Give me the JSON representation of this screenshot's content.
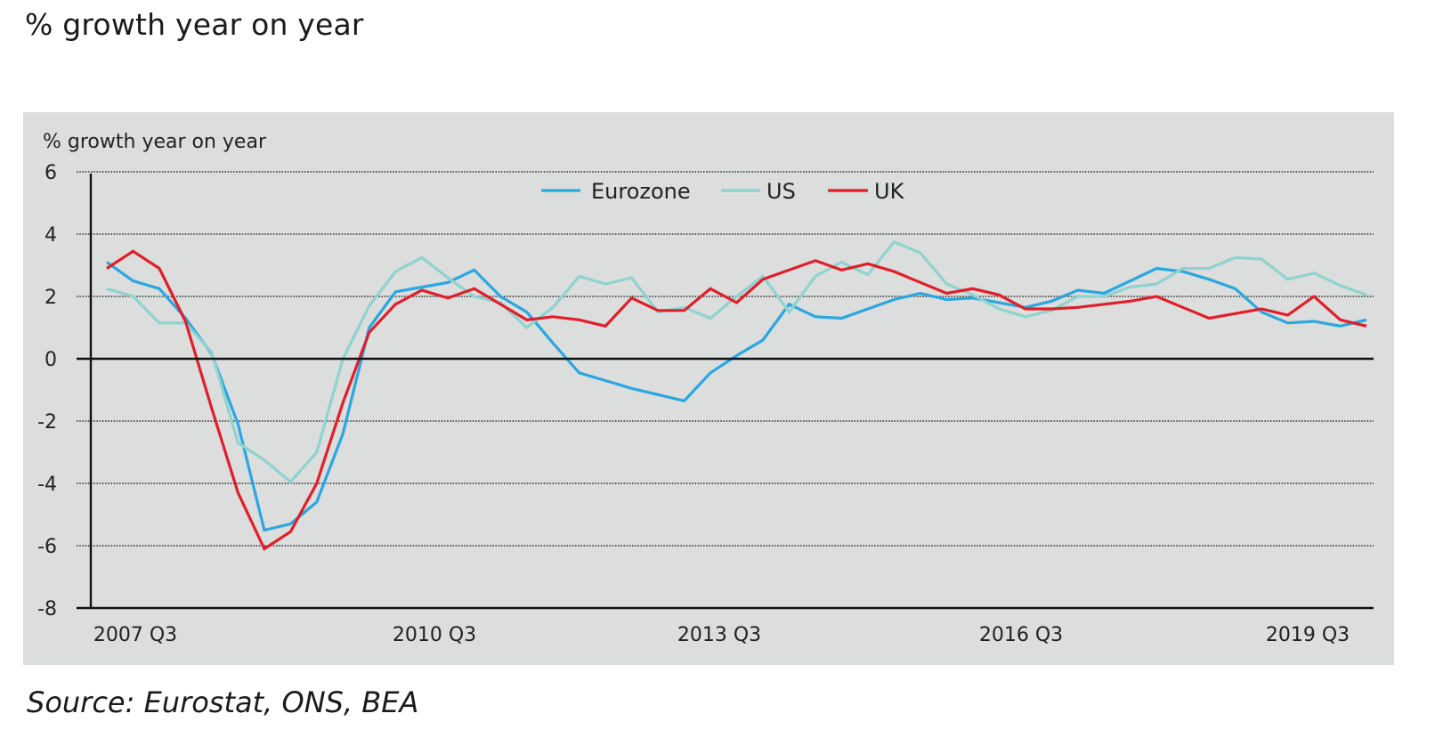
{
  "page": {
    "title": "% growth year on year",
    "source": "Source: Eurostat, ONS, BEA"
  },
  "chart_data": {
    "type": "line",
    "title": "",
    "ylabel": "% growth year on year",
    "xlabel": "",
    "ylim": [
      -8,
      6
    ],
    "yticks": [
      6,
      4,
      2,
      0,
      -2,
      -4,
      -6,
      -8
    ],
    "ytick_labels": [
      "6",
      "4",
      "2",
      "0",
      "-2",
      "-4",
      "-6",
      "-8"
    ],
    "grid": "dotted horizontal",
    "legend_position": "top-center",
    "x_tick_labels": [
      {
        "index": 0,
        "label": "2007 Q3"
      },
      {
        "index": 12,
        "label": "2010 Q3"
      },
      {
        "index": 24,
        "label": "2013 Q3"
      },
      {
        "index": 36,
        "label": "2016 Q3"
      },
      {
        "index": 48,
        "label": "2019 Q3"
      }
    ],
    "x": [
      "2007 Q3",
      "2007 Q4",
      "2008 Q1",
      "2008 Q2",
      "2008 Q3",
      "2008 Q4",
      "2009 Q1",
      "2009 Q2",
      "2009 Q3",
      "2009 Q4",
      "2010 Q1",
      "2010 Q2",
      "2010 Q3",
      "2010 Q4",
      "2011 Q1",
      "2011 Q2",
      "2011 Q3",
      "2011 Q4",
      "2012 Q1",
      "2012 Q2",
      "2012 Q3",
      "2012 Q4",
      "2013 Q1",
      "2013 Q2",
      "2013 Q3",
      "2013 Q4",
      "2014 Q1",
      "2014 Q2",
      "2014 Q3",
      "2014 Q4",
      "2015 Q1",
      "2015 Q2",
      "2015 Q3",
      "2015 Q4",
      "2016 Q1",
      "2016 Q2",
      "2016 Q3",
      "2016 Q4",
      "2017 Q1",
      "2017 Q2",
      "2017 Q3",
      "2017 Q4",
      "2018 Q1",
      "2018 Q2",
      "2018 Q3",
      "2018 Q4",
      "2019 Q1",
      "2019 Q2",
      "2019 Q3"
    ],
    "series": [
      {
        "name": "Eurozone",
        "color": "#2aa7e0",
        "values": [
          3.1,
          2.5,
          2.25,
          1.3,
          0.15,
          -2.1,
          -5.5,
          -5.3,
          -4.6,
          -2.4,
          1.0,
          2.15,
          2.3,
          2.45,
          2.85,
          2.0,
          1.5,
          0.5,
          -0.45,
          -0.7,
          -0.95,
          -1.15,
          -1.35,
          -0.45,
          0.1,
          0.6,
          1.75,
          1.35,
          1.3,
          1.6,
          1.9,
          2.1,
          1.9,
          1.95,
          1.8,
          1.65,
          1.85,
          2.2,
          2.1,
          2.5,
          2.9,
          2.8,
          2.55,
          2.25,
          1.5,
          1.15,
          1.2,
          1.05,
          1.25
        ]
      },
      {
        "name": "US",
        "color": "#8fd3cf",
        "values": [
          2.25,
          2.0,
          1.15,
          1.15,
          0.2,
          -2.7,
          -3.25,
          -3.95,
          -3.0,
          0.0,
          1.7,
          2.8,
          3.25,
          2.6,
          2.0,
          1.8,
          1.0,
          1.65,
          2.65,
          2.4,
          2.6,
          1.5,
          1.65,
          1.3,
          2.0,
          2.65,
          1.5,
          2.65,
          3.1,
          2.7,
          3.75,
          3.4,
          2.4,
          2.05,
          1.6,
          1.35,
          1.55,
          2.0,
          2.0,
          2.3,
          2.4,
          2.9,
          2.9,
          3.25,
          3.2,
          2.55,
          2.75,
          2.35,
          2.05
        ]
      },
      {
        "name": "UK",
        "color": "#e01f2a",
        "values": [
          2.9,
          3.45,
          2.9,
          1.2,
          -1.6,
          -4.3,
          -6.1,
          -5.55,
          -4.0,
          -1.4,
          0.85,
          1.75,
          2.2,
          1.95,
          2.25,
          1.75,
          1.25,
          1.35,
          1.25,
          1.05,
          1.95,
          1.55,
          1.55,
          2.25,
          1.8,
          2.55,
          2.85,
          3.15,
          2.85,
          3.05,
          2.8,
          2.45,
          2.1,
          2.25,
          2.05,
          1.6,
          1.6,
          1.65,
          1.75,
          1.85,
          2.0,
          1.65,
          1.3,
          1.45,
          1.6,
          1.4,
          2.0,
          1.25,
          1.05
        ]
      }
    ]
  }
}
